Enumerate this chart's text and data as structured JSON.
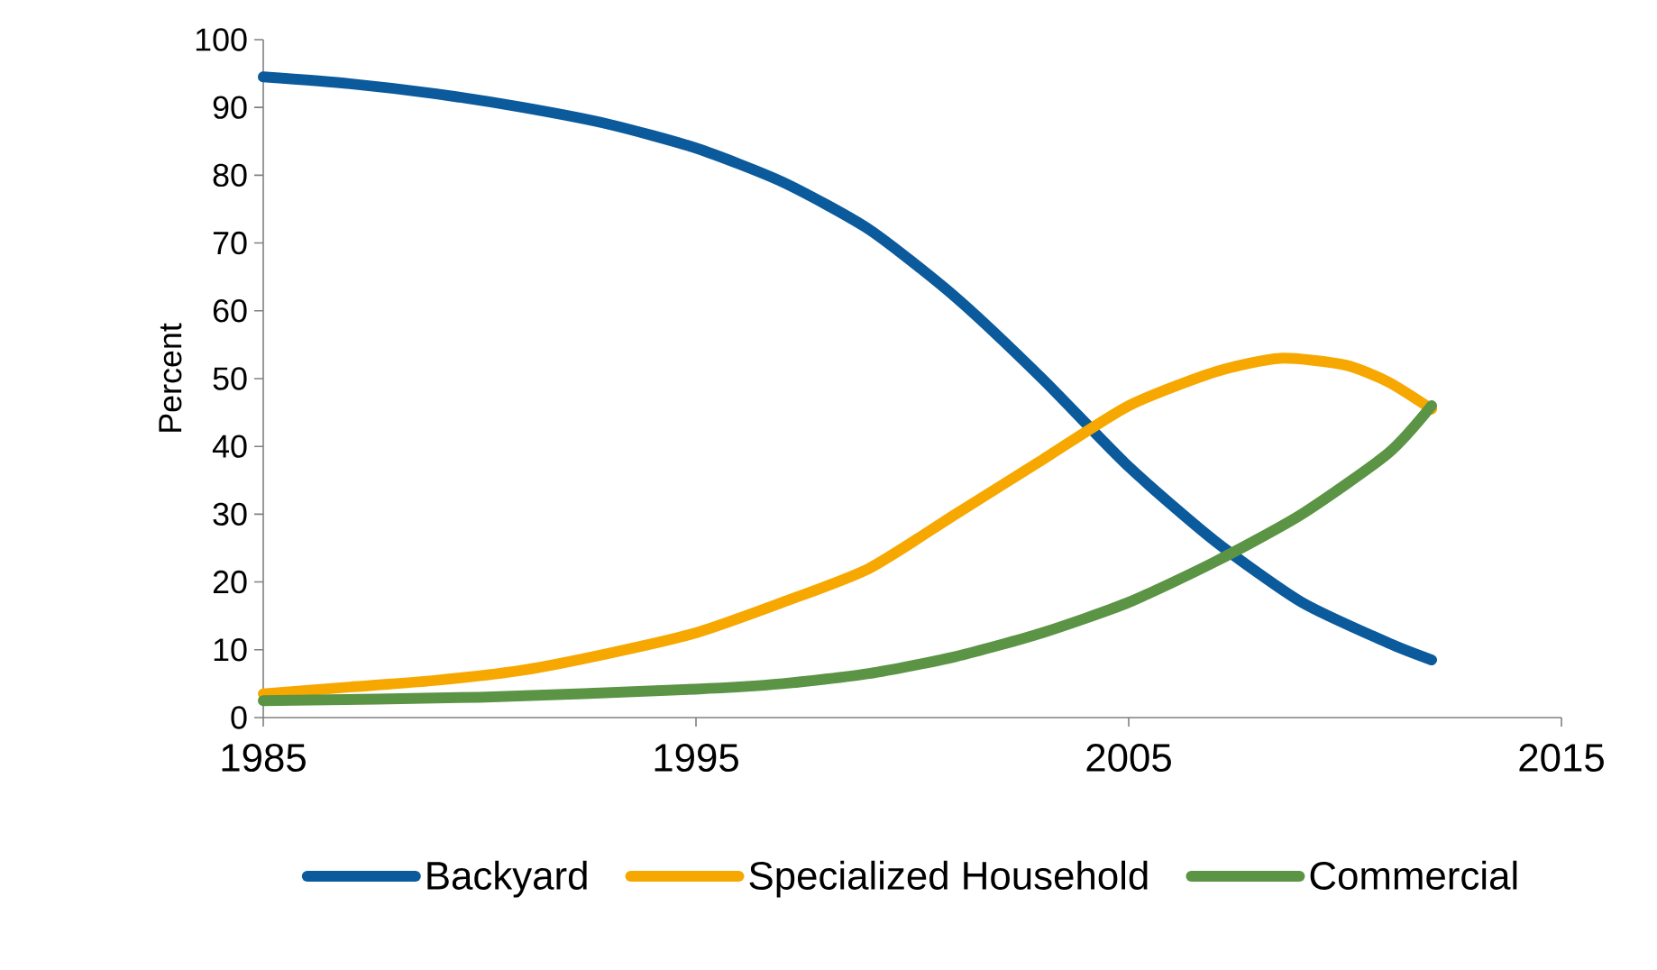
{
  "chart_data": {
    "type": "line",
    "ylabel": "Percent",
    "xlim": [
      1985,
      2015
    ],
    "ylim": [
      0,
      100
    ],
    "xticks": [
      1985,
      1995,
      2005,
      2015
    ],
    "yticks": [
      0,
      10,
      20,
      30,
      40,
      50,
      60,
      70,
      80,
      90,
      100
    ],
    "grid": false,
    "legend": "bottom",
    "marker": "none",
    "line_style": "solid",
    "series": [
      {
        "name": "Backyard",
        "color": "#0b5a9c",
        "x": [
          1985,
          1987,
          1989,
          1991,
          1993,
          1995,
          1997,
          1999,
          2001,
          2003,
          2005,
          2007,
          2009,
          2011,
          2012
        ],
        "values": [
          94.5,
          93.5,
          92,
          90,
          87.5,
          84,
          79,
          72,
          62,
          50,
          37,
          26,
          17,
          11,
          8.5
        ]
      },
      {
        "name": "Specialized Household",
        "color": "#f7a800",
        "x": [
          1985,
          1987,
          1989,
          1991,
          1993,
          1995,
          1997,
          1999,
          2001,
          2003,
          2005,
          2007,
          2008.5,
          2010,
          2011,
          2012
        ],
        "values": [
          3.5,
          4.5,
          5.5,
          7,
          9.5,
          12.5,
          17,
          22,
          30,
          38,
          46,
          51,
          53,
          52,
          49.5,
          45.5
        ]
      },
      {
        "name": "Commercial",
        "color": "#5a9444",
        "x": [
          1985,
          1990,
          1995,
          1997,
          1999,
          2001,
          2003,
          2005,
          2007,
          2009,
          2011,
          2012
        ],
        "values": [
          2.5,
          3,
          4.2,
          5,
          6.5,
          9,
          12.5,
          17,
          23,
          30,
          39,
          46
        ]
      }
    ]
  }
}
